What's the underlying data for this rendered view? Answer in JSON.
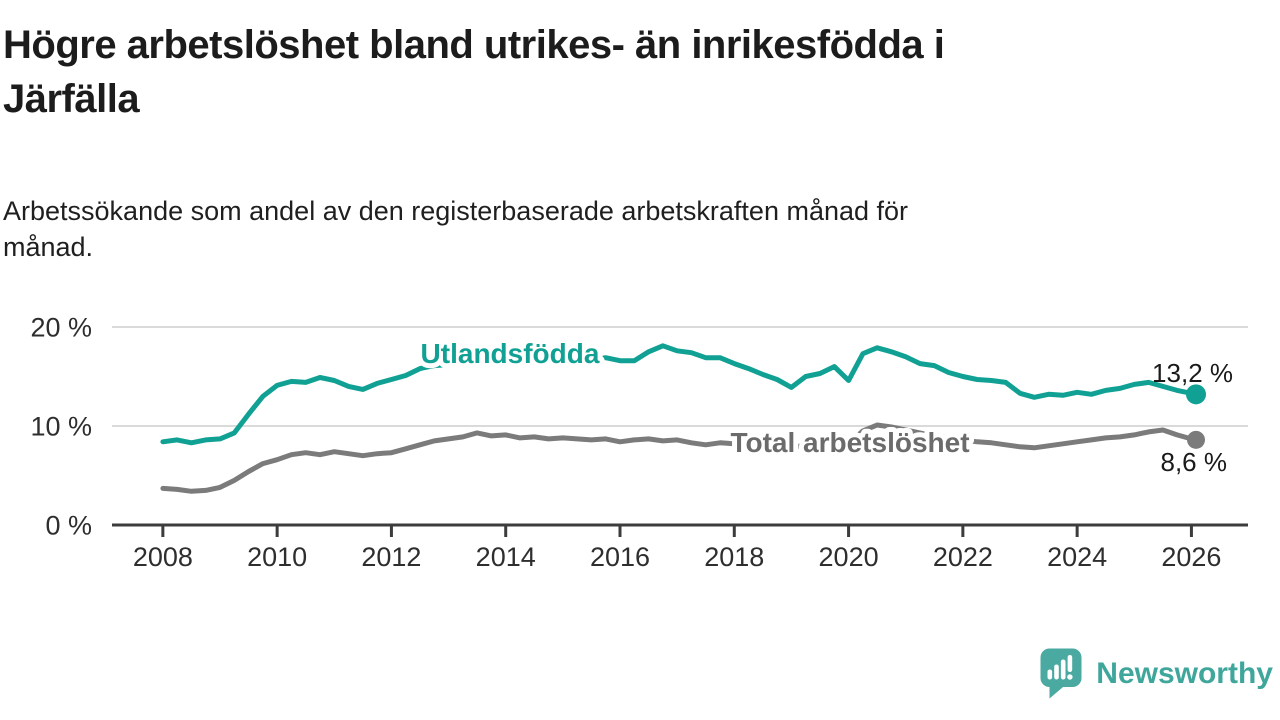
{
  "title_lines": [
    "Högre arbetslöshet bland utrikes- än inrikesfödda i",
    "Järfälla"
  ],
  "subtitle_lines": [
    "Arbetssökande som andel av den registerbaserade arbetskraften månad för",
    "månad."
  ],
  "chart_data": {
    "type": "line",
    "xlim": [
      2007.11,
      2026.99
    ],
    "ylim": [
      0,
      20
    ],
    "grid": "horizontal-light",
    "legend_position": "inline-labels",
    "yticks": {
      "values": [
        0,
        10,
        20
      ],
      "labels": [
        "0 %",
        "10 %",
        "20 %"
      ]
    },
    "xticks": {
      "values": [
        2008,
        2010,
        2012,
        2014,
        2016,
        2018,
        2020,
        2022,
        2024,
        2026
      ],
      "labels": [
        "2008",
        "2010",
        "2012",
        "2014",
        "2016",
        "2018",
        "2020",
        "2022",
        "2024",
        "2026"
      ]
    },
    "x": [
      2008.0,
      2008.25,
      2008.5,
      2008.75,
      2009.0,
      2009.25,
      2009.5,
      2009.75,
      2010.0,
      2010.25,
      2010.5,
      2010.75,
      2011.0,
      2011.25,
      2011.5,
      2011.75,
      2012.0,
      2012.25,
      2012.5,
      2012.75,
      2013.0,
      2013.25,
      2013.5,
      2013.75,
      2014.0,
      2014.25,
      2014.5,
      2014.75,
      2015.0,
      2015.25,
      2015.5,
      2015.75,
      2016.0,
      2016.25,
      2016.5,
      2016.75,
      2017.0,
      2017.25,
      2017.5,
      2017.75,
      2018.0,
      2018.25,
      2018.5,
      2018.75,
      2019.0,
      2019.25,
      2019.5,
      2019.75,
      2020.0,
      2020.25,
      2020.5,
      2020.75,
      2021.0,
      2021.25,
      2021.5,
      2021.75,
      2022.0,
      2022.25,
      2022.5,
      2022.75,
      2023.0,
      2023.25,
      2023.5,
      2023.75,
      2024.0,
      2024.25,
      2024.5,
      2024.75,
      2025.0,
      2025.25,
      2025.5,
      2025.75,
      2026.0,
      2026.08
    ],
    "series": [
      {
        "name": "Utlandsfödda",
        "color": "#11a194",
        "end_value_label": "13,2 %",
        "end_value": 13.2,
        "values": [
          8.4,
          8.6,
          8.3,
          8.6,
          8.7,
          9.3,
          11.2,
          13.0,
          14.1,
          14.5,
          14.4,
          14.9,
          14.6,
          14.0,
          13.7,
          14.3,
          14.7,
          15.1,
          15.8,
          16.1,
          16.2,
          16.4,
          16.3,
          16.5,
          16.4,
          16.6,
          16.5,
          16.4,
          16.6,
          16.5,
          16.7,
          16.9,
          16.6,
          16.6,
          17.5,
          18.1,
          17.6,
          17.4,
          16.9,
          16.9,
          16.3,
          15.8,
          15.2,
          14.7,
          13.9,
          15.0,
          15.3,
          16.0,
          14.6,
          17.3,
          17.9,
          17.5,
          17.0,
          16.3,
          16.1,
          15.4,
          15.0,
          14.7,
          14.6,
          14.4,
          13.3,
          12.9,
          13.2,
          13.1,
          13.4,
          13.2,
          13.6,
          13.8,
          14.2,
          14.4,
          14.0,
          13.6,
          13.3,
          13.2
        ]
      },
      {
        "name": "Total arbetslöshet",
        "color": "#7b7b7b",
        "label_color": "#6b6b6b",
        "end_value_label": "8,6 %",
        "end_value": 8.6,
        "values": [
          3.7,
          3.6,
          3.4,
          3.5,
          3.8,
          4.5,
          5.4,
          6.2,
          6.6,
          7.1,
          7.3,
          7.1,
          7.4,
          7.2,
          7.0,
          7.2,
          7.3,
          7.7,
          8.1,
          8.5,
          8.7,
          8.9,
          9.3,
          9.0,
          9.1,
          8.8,
          8.9,
          8.7,
          8.8,
          8.7,
          8.6,
          8.7,
          8.4,
          8.6,
          8.7,
          8.5,
          8.6,
          8.3,
          8.1,
          8.3,
          8.2,
          8.1,
          8.0,
          8.1,
          7.9,
          8.0,
          8.2,
          8.1,
          8.2,
          9.5,
          10.1,
          9.9,
          9.6,
          9.3,
          9.0,
          8.8,
          8.6,
          8.4,
          8.3,
          8.1,
          7.9,
          7.8,
          8.0,
          8.2,
          8.4,
          8.6,
          8.8,
          8.9,
          9.1,
          9.4,
          9.6,
          9.1,
          8.7,
          8.6
        ]
      }
    ]
  },
  "colors": {
    "accent_teal": "#11a194",
    "line_gray": "#7b7b7b",
    "grid": "#dadada",
    "axis": "#3c3c3c",
    "text": "#1c1c1c"
  },
  "footer": {
    "brand": "Newsworthy",
    "logo_color": "#4aa9a0",
    "brand_text_color": "#3fa69b"
  }
}
